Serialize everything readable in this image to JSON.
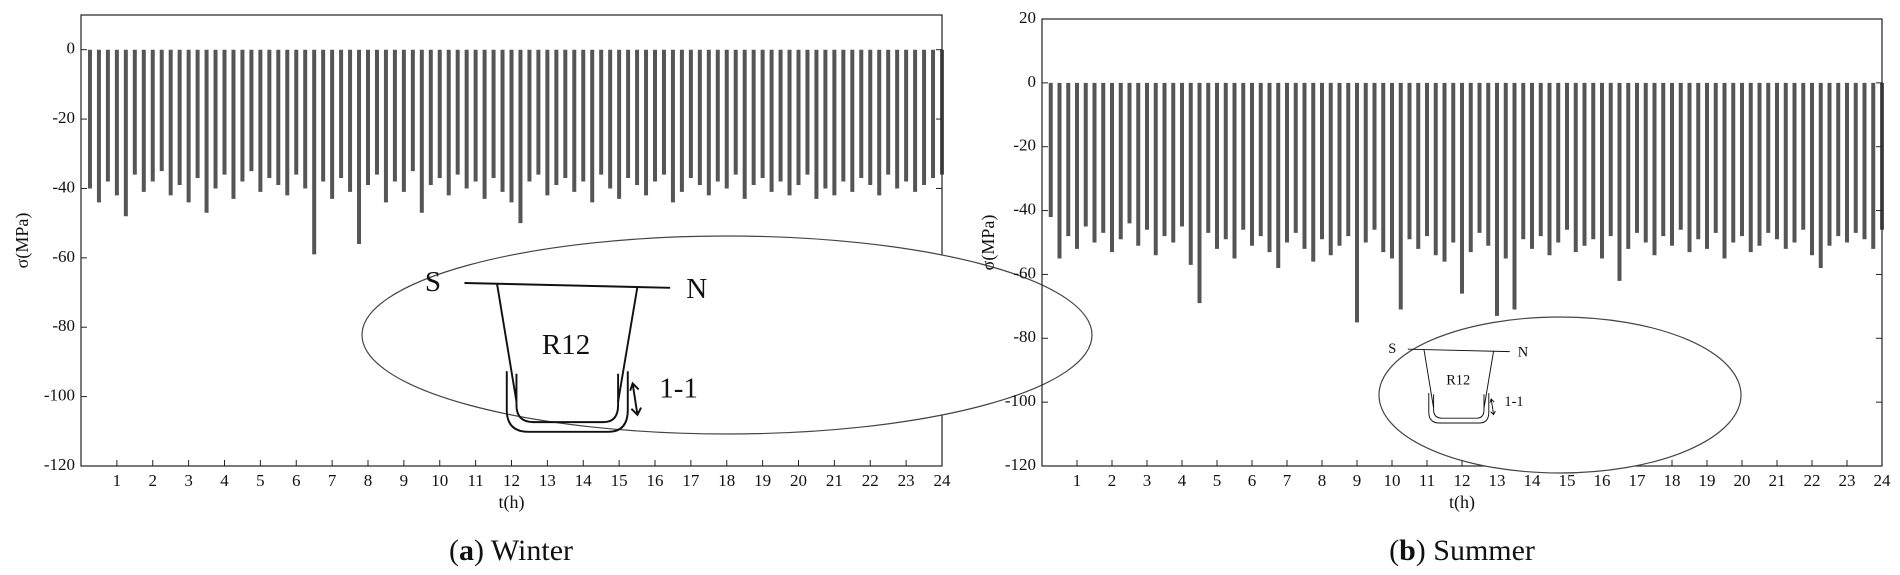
{
  "chart_data": [
    {
      "type": "bar",
      "ylabel": "σ(MPa)",
      "xlabel": "t(h)",
      "caption": [
        "(",
        "a",
        ") Winter"
      ],
      "inset": {
        "left": "S",
        "right": "N",
        "section": "R12",
        "cut": "1-1"
      },
      "color": "#2a2a2a",
      "xlim": [
        0,
        24
      ],
      "ylim": [
        -120,
        10
      ],
      "xticks": [
        1,
        2,
        3,
        4,
        5,
        6,
        7,
        8,
        9,
        10,
        11,
        12,
        13,
        14,
        15,
        16,
        17,
        18,
        19,
        20,
        21,
        22,
        23,
        24
      ],
      "yticks": [
        -120,
        -100,
        -80,
        -60,
        -40,
        -20,
        0
      ],
      "x": [
        0.25,
        0.5,
        0.75,
        1,
        1.25,
        1.5,
        1.75,
        2,
        2.25,
        2.5,
        2.75,
        3,
        3.25,
        3.5,
        3.75,
        4,
        4.25,
        4.5,
        4.75,
        5,
        5.25,
        5.5,
        5.75,
        6,
        6.25,
        6.5,
        6.75,
        7,
        7.25,
        7.5,
        7.75,
        8,
        8.25,
        8.5,
        8.75,
        9,
        9.25,
        9.5,
        9.75,
        10,
        10.25,
        10.5,
        10.75,
        11,
        11.25,
        11.5,
        11.75,
        12,
        12.25,
        12.5,
        12.75,
        13,
        13.25,
        13.5,
        13.75,
        14,
        14.25,
        14.5,
        14.75,
        15,
        15.25,
        15.5,
        15.75,
        16,
        16.25,
        16.5,
        16.75,
        17,
        17.25,
        17.5,
        17.75,
        18,
        18.25,
        18.5,
        18.75,
        19,
        19.25,
        19.5,
        19.75,
        20,
        20.25,
        20.5,
        20.75,
        21,
        21.25,
        21.5,
        21.75,
        22,
        22.25,
        22.5,
        22.75,
        23,
        23.25,
        23.5,
        23.75,
        24
      ],
      "values": [
        -40,
        -44,
        -38,
        -42,
        -48,
        -36,
        -41,
        -38,
        -35,
        -42,
        -39,
        -44,
        -37,
        -47,
        -40,
        -36,
        -43,
        -38,
        -35,
        -41,
        -37,
        -39,
        -42,
        -36,
        -40,
        -59,
        -38,
        -43,
        -37,
        -41,
        -56,
        -39,
        -36,
        -44,
        -38,
        -41,
        -35,
        -47,
        -39,
        -37,
        -42,
        -36,
        -40,
        -38,
        -43,
        -37,
        -41,
        -44,
        -50,
        -38,
        -36,
        -42,
        -39,
        -37,
        -41,
        -38,
        -44,
        -36,
        -40,
        -43,
        -37,
        -39,
        -42,
        -38,
        -36,
        -44,
        -41,
        -37,
        -39,
        -42,
        -38,
        -40,
        -36,
        -43,
        -39,
        -37,
        -41,
        -38,
        -42,
        -39,
        -36,
        -43,
        -40,
        -42,
        -38,
        -41,
        -37,
        -39,
        -42,
        -36,
        -40,
        -38,
        -41,
        -39,
        -37,
        -36
      ]
    },
    {
      "type": "bar",
      "ylabel": "σ(MPa)",
      "xlabel": "t(h)",
      "caption": [
        "(",
        "b",
        ") Summer"
      ],
      "inset": {
        "left": "S",
        "right": "N",
        "section": "R12",
        "cut": "1-1"
      },
      "color": "#2a2a2a",
      "xlim": [
        0,
        24
      ],
      "ylim": [
        -120,
        20
      ],
      "xticks": [
        1,
        2,
        3,
        4,
        5,
        6,
        7,
        8,
        9,
        10,
        11,
        12,
        13,
        14,
        15,
        16,
        17,
        18,
        19,
        20,
        21,
        22,
        23,
        24
      ],
      "yticks": [
        -120,
        -100,
        -80,
        -60,
        -40,
        -20,
        0,
        20
      ],
      "x": [
        0.25,
        0.5,
        0.75,
        1,
        1.25,
        1.5,
        1.75,
        2,
        2.25,
        2.5,
        2.75,
        3,
        3.25,
        3.5,
        3.75,
        4,
        4.25,
        4.5,
        4.75,
        5,
        5.25,
        5.5,
        5.75,
        6,
        6.25,
        6.5,
        6.75,
        7,
        7.25,
        7.5,
        7.75,
        8,
        8.25,
        8.5,
        8.75,
        9,
        9.25,
        9.5,
        9.75,
        10,
        10.25,
        10.5,
        10.75,
        11,
        11.25,
        11.5,
        11.75,
        12,
        12.25,
        12.5,
        12.75,
        13,
        13.25,
        13.5,
        13.75,
        14,
        14.25,
        14.5,
        14.75,
        15,
        15.25,
        15.5,
        15.75,
        16,
        16.25,
        16.5,
        16.75,
        17,
        17.25,
        17.5,
        17.75,
        18,
        18.25,
        18.5,
        18.75,
        19,
        19.25,
        19.5,
        19.75,
        20,
        20.25,
        20.5,
        20.75,
        21,
        21.25,
        21.5,
        21.75,
        22,
        22.25,
        22.5,
        22.75,
        23,
        23.25,
        23.5,
        23.75,
        24
      ],
      "values": [
        -42,
        -55,
        -48,
        -52,
        -45,
        -50,
        -47,
        -53,
        -49,
        -44,
        -51,
        -46,
        -54,
        -48,
        -50,
        -45,
        -57,
        -69,
        -47,
        -52,
        -49,
        -55,
        -46,
        -51,
        -48,
        -53,
        -58,
        -50,
        -47,
        -52,
        -56,
        -49,
        -54,
        -51,
        -48,
        -75,
        -50,
        -46,
        -53,
        -55,
        -71,
        -49,
        -52,
        -48,
        -54,
        -56,
        -50,
        -66,
        -53,
        -47,
        -51,
        -73,
        -55,
        -71,
        -49,
        -52,
        -48,
        -54,
        -50,
        -46,
        -53,
        -51,
        -49,
        -55,
        -48,
        -62,
        -52,
        -47,
        -50,
        -54,
        -48,
        -51,
        -46,
        -53,
        -49,
        -52,
        -47,
        -55,
        -50,
        -48,
        -53,
        -51,
        -47,
        -49,
        -52,
        -50,
        -46,
        -54,
        -58,
        -51,
        -48,
        -50,
        -47,
        -49,
        -52,
        -46
      ]
    }
  ]
}
